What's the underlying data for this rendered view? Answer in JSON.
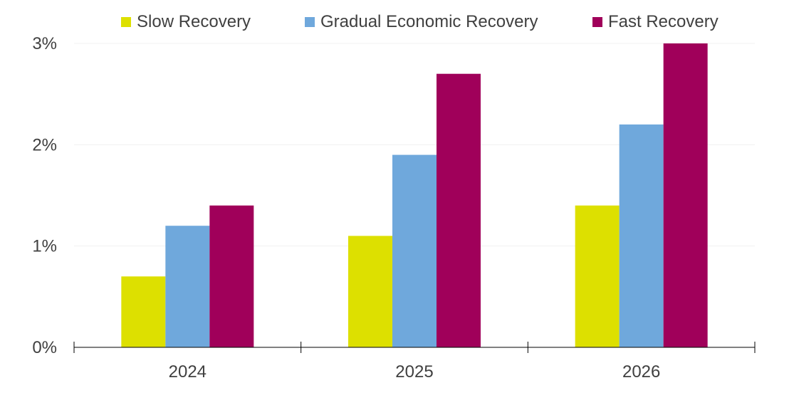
{
  "chart_data": {
    "type": "bar",
    "categories": [
      "2024",
      "2025",
      "2026"
    ],
    "series": [
      {
        "name": "Slow Recovery",
        "color": "#dde000",
        "values": [
          0.7,
          1.1,
          1.4
        ]
      },
      {
        "name": "Gradual Economic Recovery",
        "color": "#6fa8dc",
        "values": [
          1.2,
          1.9,
          2.2
        ]
      },
      {
        "name": "Fast Recovery",
        "color": "#a0005a",
        "values": [
          1.4,
          2.7,
          3.0
        ]
      }
    ],
    "yticks": [
      "0%",
      "1%",
      "2%",
      "3%"
    ],
    "ytick_values": [
      0,
      1,
      2,
      3
    ],
    "ylim": [
      0,
      3
    ],
    "grid": true,
    "legend_position": "top"
  }
}
